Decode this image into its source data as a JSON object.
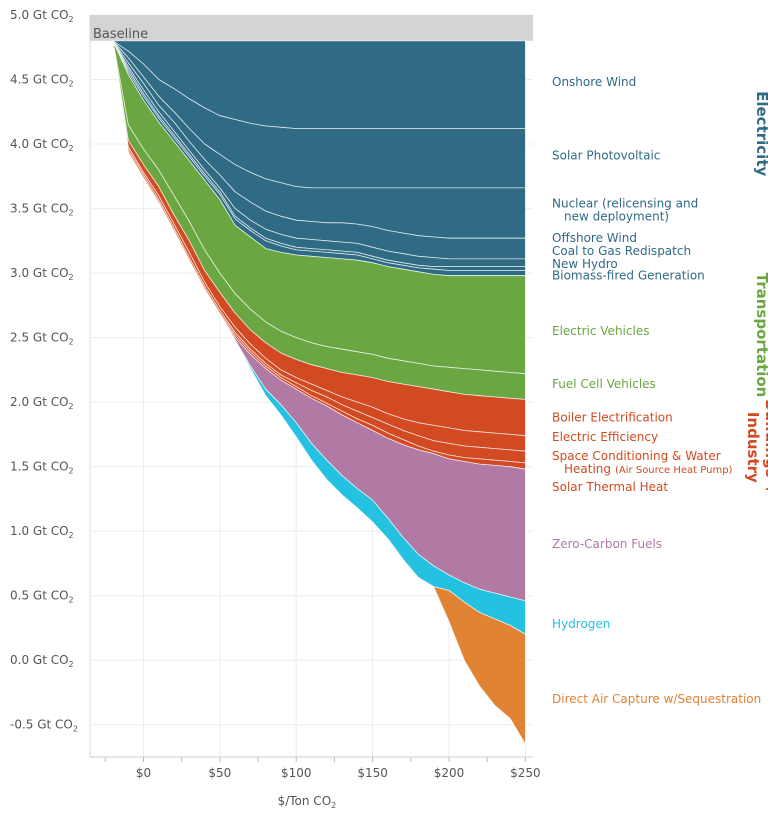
{
  "chart_data": {
    "type": "area",
    "title": "",
    "xlabel": "$/Ton CO",
    "xlabel_sub": "2",
    "ylabel": "",
    "xlim": [
      -35,
      255
    ],
    "ylim": [
      -0.75,
      5.0
    ],
    "x_ticks": [
      0,
      50,
      100,
      150,
      200,
      250
    ],
    "x_tick_labels": [
      "$0",
      "$50",
      "$100",
      "$150",
      "$200",
      "$250"
    ],
    "y_ticks": [
      5.0,
      4.5,
      4.0,
      3.5,
      3.0,
      2.5,
      2.0,
      1.5,
      1.0,
      0.5,
      0.0,
      -0.5
    ],
    "y_tick_labels": [
      "5.0 Gt CO",
      "4.5 Gt CO",
      "4.0 Gt CO",
      "3.5 Gt CO",
      "3.0 Gt CO",
      "2.5 Gt CO",
      "2.0 Gt CO",
      "1.5 Gt CO",
      "1.0 Gt CO",
      "0.5 Gt CO",
      "0.0 Gt CO",
      "-0.5 Gt CO"
    ],
    "y_tick_sub": "2",
    "grid": true,
    "baseline": {
      "label": "Baseline",
      "value": 4.8,
      "color": "#d4d4d4"
    },
    "x": [
      -20,
      -10,
      0,
      10,
      20,
      30,
      40,
      50,
      60,
      70,
      80,
      90,
      100,
      110,
      120,
      130,
      140,
      150,
      160,
      170,
      180,
      190,
      200,
      210,
      220,
      230,
      240,
      250
    ],
    "boundaries": [
      {
        "name": "Onshore Wind",
        "values": [
          4.8,
          4.8,
          4.8,
          4.8,
          4.8,
          4.8,
          4.8,
          4.8,
          4.8,
          4.8,
          4.8,
          4.8,
          4.8,
          4.8,
          4.8,
          4.8,
          4.8,
          4.8,
          4.8,
          4.8,
          4.8,
          4.8,
          4.8,
          4.8,
          4.8,
          4.8,
          4.8,
          4.8
        ]
      },
      {
        "name": "Solar Photovoltaic",
        "values": [
          4.8,
          4.72,
          4.62,
          4.5,
          4.43,
          4.35,
          4.28,
          4.22,
          4.19,
          4.16,
          4.14,
          4.13,
          4.12,
          4.12,
          4.12,
          4.12,
          4.12,
          4.12,
          4.12,
          4.12,
          4.12,
          4.12,
          4.12,
          4.12,
          4.12,
          4.12,
          4.12,
          4.12
        ]
      },
      {
        "name": "Nuclear (relicensing and new deployment)",
        "values": [
          4.8,
          4.67,
          4.52,
          4.37,
          4.25,
          4.12,
          4.0,
          3.92,
          3.84,
          3.78,
          3.73,
          3.7,
          3.67,
          3.66,
          3.66,
          3.66,
          3.66,
          3.66,
          3.66,
          3.66,
          3.66,
          3.66,
          3.66,
          3.66,
          3.66,
          3.66,
          3.66,
          3.66
        ]
      },
      {
        "name": "Offshore Wind",
        "values": [
          4.8,
          4.63,
          4.47,
          4.3,
          4.17,
          4.02,
          3.88,
          3.76,
          3.63,
          3.55,
          3.48,
          3.44,
          3.41,
          3.4,
          3.39,
          3.39,
          3.38,
          3.36,
          3.33,
          3.31,
          3.29,
          3.28,
          3.27,
          3.27,
          3.27,
          3.27,
          3.27,
          3.27
        ]
      },
      {
        "name": "Coal to Gas Redispatch",
        "values": [
          4.8,
          4.6,
          4.42,
          4.25,
          4.1,
          3.95,
          3.8,
          3.66,
          3.5,
          3.41,
          3.34,
          3.3,
          3.27,
          3.26,
          3.25,
          3.24,
          3.23,
          3.2,
          3.17,
          3.15,
          3.13,
          3.12,
          3.11,
          3.11,
          3.11,
          3.11,
          3.11,
          3.11
        ]
      },
      {
        "name": "New Hydro",
        "values": [
          4.8,
          4.58,
          4.39,
          4.22,
          4.07,
          3.92,
          3.77,
          3.63,
          3.44,
          3.35,
          3.27,
          3.23,
          3.2,
          3.19,
          3.18,
          3.17,
          3.16,
          3.13,
          3.1,
          3.08,
          3.06,
          3.05,
          3.05,
          3.05,
          3.05,
          3.05,
          3.05,
          3.05
        ]
      },
      {
        "name": "Biomass-fired Generation",
        "values": [
          4.8,
          4.56,
          4.37,
          4.2,
          4.05,
          3.9,
          3.75,
          3.61,
          3.42,
          3.33,
          3.25,
          3.21,
          3.18,
          3.17,
          3.16,
          3.15,
          3.14,
          3.11,
          3.08,
          3.06,
          3.04,
          3.03,
          3.02,
          3.02,
          3.02,
          3.02,
          3.02,
          3.02
        ]
      },
      {
        "name": "Electric Vehicles",
        "values": [
          4.8,
          4.54,
          4.34,
          4.17,
          4.02,
          3.87,
          3.72,
          3.57,
          3.37,
          3.28,
          3.19,
          3.16,
          3.14,
          3.13,
          3.12,
          3.11,
          3.1,
          3.08,
          3.05,
          3.03,
          3.01,
          2.99,
          2.98,
          2.98,
          2.98,
          2.98,
          2.98,
          2.98
        ]
      },
      {
        "name": "Fuel Cell Vehicles",
        "values": [
          4.8,
          4.15,
          3.96,
          3.8,
          3.6,
          3.4,
          3.18,
          3.0,
          2.84,
          2.72,
          2.62,
          2.55,
          2.5,
          2.46,
          2.43,
          2.41,
          2.39,
          2.37,
          2.34,
          2.32,
          2.3,
          2.28,
          2.27,
          2.26,
          2.25,
          2.24,
          2.23,
          2.22
        ]
      },
      {
        "name": "Boiler Electrification",
        "values": [
          4.8,
          4.03,
          3.84,
          3.67,
          3.45,
          3.25,
          3.02,
          2.85,
          2.69,
          2.56,
          2.46,
          2.38,
          2.33,
          2.29,
          2.26,
          2.23,
          2.21,
          2.19,
          2.16,
          2.14,
          2.12,
          2.1,
          2.08,
          2.06,
          2.05,
          2.04,
          2.03,
          2.02
        ]
      },
      {
        "name": "Electric Efficiency",
        "values": [
          4.8,
          3.98,
          3.78,
          3.6,
          3.38,
          3.16,
          2.93,
          2.74,
          2.58,
          2.45,
          2.34,
          2.25,
          2.19,
          2.14,
          2.09,
          2.04,
          2.0,
          1.96,
          1.91,
          1.87,
          1.84,
          1.82,
          1.8,
          1.78,
          1.77,
          1.76,
          1.75,
          1.74
        ]
      },
      {
        "name": "Space Conditioning & Water Heating (Air Source Heat Pump)",
        "values": [
          4.8,
          3.96,
          3.76,
          3.57,
          3.35,
          3.12,
          2.9,
          2.71,
          2.54,
          2.41,
          2.3,
          2.21,
          2.15,
          2.09,
          2.04,
          1.98,
          1.93,
          1.88,
          1.83,
          1.78,
          1.74,
          1.7,
          1.68,
          1.66,
          1.65,
          1.64,
          1.63,
          1.62
        ]
      },
      {
        "name": "Solar Thermal Heat",
        "values": [
          4.8,
          3.94,
          3.74,
          3.55,
          3.33,
          3.1,
          2.88,
          2.69,
          2.52,
          2.39,
          2.28,
          2.19,
          2.12,
          2.05,
          1.99,
          1.93,
          1.87,
          1.82,
          1.76,
          1.71,
          1.66,
          1.62,
          1.59,
          1.57,
          1.56,
          1.55,
          1.54,
          1.53
        ]
      },
      {
        "name": "Zero-Carbon Fuels",
        "values": [
          4.8,
          3.93,
          3.73,
          3.54,
          3.32,
          3.09,
          2.87,
          2.68,
          2.5,
          2.37,
          2.26,
          2.17,
          2.1,
          2.03,
          1.97,
          1.9,
          1.84,
          1.78,
          1.72,
          1.67,
          1.63,
          1.6,
          1.56,
          1.54,
          1.52,
          1.51,
          1.5,
          1.48
        ]
      },
      {
        "name": "Hydrogen",
        "values": [
          4.8,
          3.93,
          3.73,
          3.54,
          3.32,
          3.09,
          2.87,
          2.68,
          2.48,
          2.28,
          2.1,
          1.98,
          1.84,
          1.68,
          1.55,
          1.43,
          1.33,
          1.24,
          1.1,
          0.95,
          0.82,
          0.73,
          0.66,
          0.6,
          0.55,
          0.52,
          0.49,
          0.46
        ]
      },
      {
        "name": "Direct Air Capture w/Sequestration",
        "values": [
          4.8,
          3.93,
          3.73,
          3.54,
          3.32,
          3.09,
          2.87,
          2.68,
          2.48,
          2.26,
          2.05,
          1.9,
          1.73,
          1.55,
          1.4,
          1.28,
          1.18,
          1.07,
          0.94,
          0.78,
          0.64,
          0.57,
          0.54,
          0.45,
          0.37,
          0.32,
          0.27,
          0.2
        ]
      }
    ],
    "dac_bottom": [
      4.8,
      3.93,
      3.73,
      3.54,
      3.32,
      3.09,
      2.87,
      2.68,
      2.48,
      2.26,
      2.05,
      1.9,
      1.73,
      1.55,
      1.4,
      1.28,
      1.18,
      1.07,
      0.94,
      0.78,
      0.64,
      0.57,
      0.3,
      0.0,
      -0.2,
      -0.35,
      -0.45,
      -0.65
    ],
    "series": [
      {
        "name": "Onshore Wind",
        "color": "#2f6b84",
        "group": "Electricity"
      },
      {
        "name": "Solar Photovoltaic",
        "color": "#2f6b84",
        "group": "Electricity"
      },
      {
        "name": "Nuclear (relicensing and new deployment)",
        "color": "#2f6b84",
        "group": "Electricity"
      },
      {
        "name": "Offshore Wind",
        "color": "#2f6b84",
        "group": "Electricity"
      },
      {
        "name": "Coal to Gas Redispatch",
        "color": "#2f6b84",
        "group": "Electricity"
      },
      {
        "name": "New Hydro",
        "color": "#2f6b84",
        "group": "Electricity"
      },
      {
        "name": "Biomass-fired Generation",
        "color": "#2f6b84",
        "group": "Electricity"
      },
      {
        "name": "Electric Vehicles",
        "color": "#6aa742",
        "group": "Transportation"
      },
      {
        "name": "Fuel Cell Vehicles",
        "color": "#6aa742",
        "group": "Transportation"
      },
      {
        "name": "Boiler Electrification",
        "color": "#d24a21",
        "group": "Buildings + Industry"
      },
      {
        "name": "Electric Efficiency",
        "color": "#d24a21",
        "group": "Buildings + Industry"
      },
      {
        "name": "Space Conditioning & Water Heating (Air Source Heat Pump)",
        "color": "#d24a21",
        "group": "Buildings + Industry"
      },
      {
        "name": "Solar Thermal Heat",
        "color": "#d24a21",
        "group": "Buildings + Industry"
      },
      {
        "name": "Zero-Carbon Fuels",
        "color": "#b07aa4",
        "group": ""
      },
      {
        "name": "Hydrogen",
        "color": "#24c1e0",
        "group": ""
      },
      {
        "name": "Direct Air Capture w/Sequestration",
        "color": "#e08332",
        "group": ""
      }
    ],
    "legend": [
      {
        "lines": [
          "Onshore Wind"
        ],
        "small": "",
        "color": "#2f6b84",
        "y": 4.45
      },
      {
        "lines": [
          "Solar Photovoltaic"
        ],
        "small": "",
        "color": "#2f6b84",
        "y": 3.88
      },
      {
        "lines": [
          "Nuclear (relicensing and",
          "new deployment)"
        ],
        "small": "",
        "color": "#2f6b84",
        "y": 3.51
      },
      {
        "lines": [
          "Offshore Wind"
        ],
        "small": "",
        "color": "#2f6b84",
        "y": 3.24
      },
      {
        "lines": [
          "Coal to Gas Redispatch"
        ],
        "small": "",
        "color": "#2f6b84",
        "y": 3.14
      },
      {
        "lines": [
          "New Hydro"
        ],
        "small": "",
        "color": "#2f6b84",
        "y": 3.04
      },
      {
        "lines": [
          "Biomass-fired Generation"
        ],
        "small": "",
        "color": "#2f6b84",
        "y": 2.95
      },
      {
        "lines": [
          "Electric Vehicles"
        ],
        "small": "",
        "color": "#6aa742",
        "y": 2.52
      },
      {
        "lines": [
          "Fuel Cell Vehicles"
        ],
        "small": "",
        "color": "#6aa742",
        "y": 2.11
      },
      {
        "lines": [
          "Boiler Electrification"
        ],
        "small": "",
        "color": "#d24a21",
        "y": 1.85
      },
      {
        "lines": [
          "Electric Efficiency"
        ],
        "small": "",
        "color": "#d24a21",
        "y": 1.7
      },
      {
        "lines": [
          "Space Conditioning & Water",
          "Heating"
        ],
        "small": "(Air Source Heat Pump)",
        "color": "#d24a21",
        "y": 1.55
      },
      {
        "lines": [
          "Solar Thermal Heat"
        ],
        "small": "",
        "color": "#d24a21",
        "y": 1.31
      },
      {
        "lines": [
          "Zero-Carbon Fuels"
        ],
        "small": "",
        "color": "#b07aa4",
        "y": 0.87
      },
      {
        "lines": [
          "Hydrogen"
        ],
        "small": "",
        "color": "#24c1e0",
        "y": 0.25
      },
      {
        "lines": [
          "Direct Air Capture w/Sequestration"
        ],
        "small": "",
        "color": "#e08332",
        "y": -0.33
      }
    ],
    "groups": [
      {
        "lines": [
          "Electricity"
        ],
        "color": "#2f6b84",
        "y": 4.08
      },
      {
        "lines": [
          "Transportation"
        ],
        "color": "#6aa742",
        "y": 2.52
      },
      {
        "lines": [
          "Buildings +",
          "Industry"
        ],
        "color": "#d24a21",
        "y": 1.65
      }
    ]
  }
}
